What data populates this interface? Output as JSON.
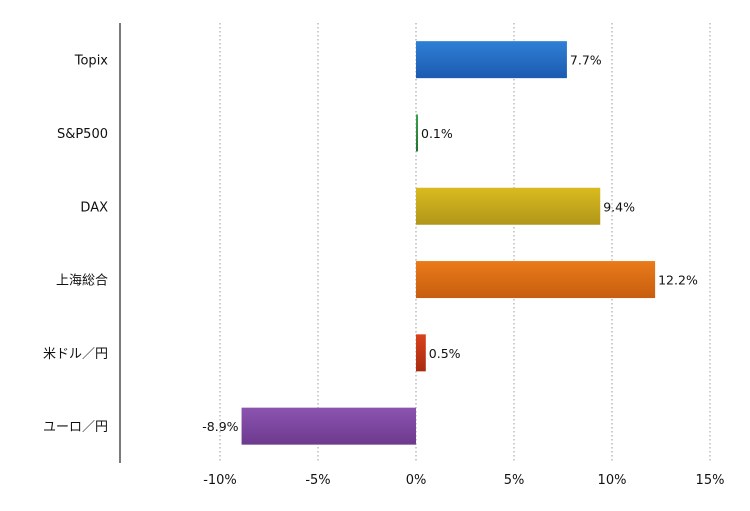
{
  "chart_data": {
    "type": "bar",
    "orientation": "horizontal",
    "title": "",
    "xlabel": "",
    "ylabel": "",
    "categories": [
      "Topix",
      "S&P500",
      "DAX",
      "上海総合",
      "米ドル／円",
      "ユーロ／円"
    ],
    "values": [
      7.7,
      0.1,
      9.4,
      12.2,
      0.5,
      -8.9
    ],
    "data_labels": [
      "7.7%",
      "0.1%",
      "9.4%",
      "12.2%",
      "0.5%",
      "-8.9%"
    ],
    "xlim": [
      -15,
      15
    ],
    "x_ticks": [
      -10,
      -5,
      0,
      5,
      10,
      15
    ],
    "x_tick_labels": [
      "-10%",
      "-5%",
      "0%",
      "5%",
      "10%",
      "15%"
    ],
    "grid": "vertical dotted",
    "legend": "none",
    "bar_colors": [
      "#2f7fd6",
      "#3aa14a",
      "#d9bb1f",
      "#ea7b1a",
      "#d8421c",
      "#8c54b0"
    ],
    "bar_colors_dark": [
      "#1b5bb0",
      "#22722e",
      "#b1961a",
      "#c75e0f",
      "#a82c10",
      "#6c3a8f"
    ]
  }
}
